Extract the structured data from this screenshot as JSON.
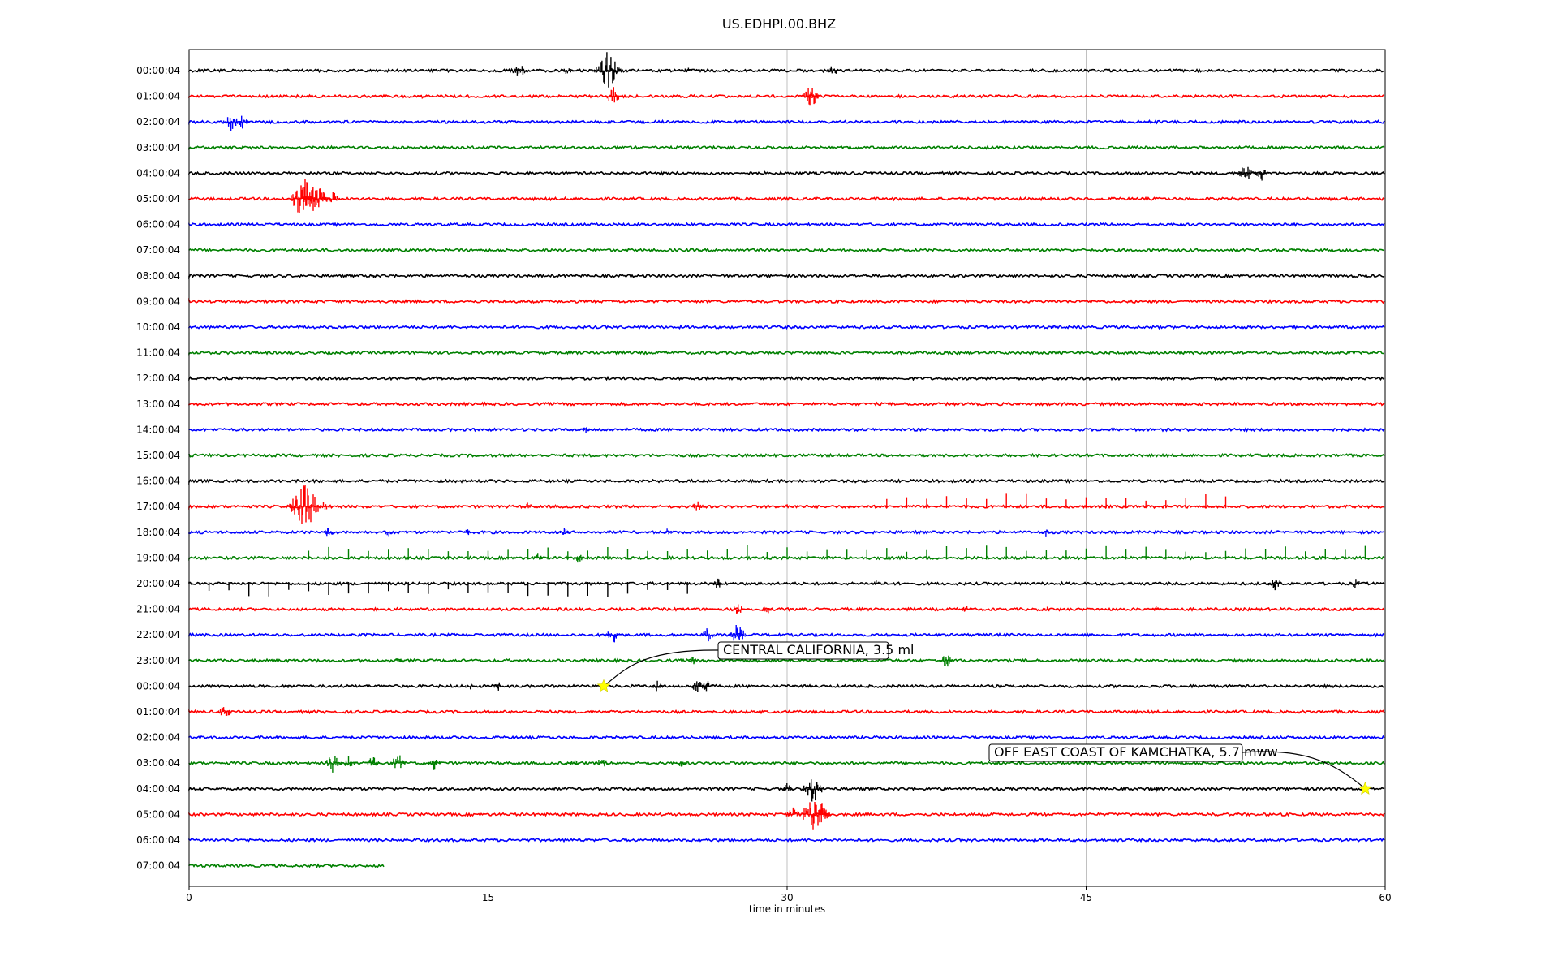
{
  "chart_data": {
    "type": "line",
    "title": "US.EDHPI.00.BHZ",
    "xlabel": "time in minutes",
    "xlim": [
      0,
      60
    ],
    "xticks": [
      "0",
      "15",
      "30",
      "45",
      "60"
    ],
    "xtick_values": [
      0,
      15,
      30,
      45,
      60
    ],
    "grid_x": true,
    "colors_cycle": [
      "#000000",
      "#ff0000",
      "#0000ff",
      "#008000"
    ],
    "rows": [
      {
        "label": "00:00:04",
        "events": [
          [
            16.5,
            1
          ],
          [
            19,
            0.5
          ],
          [
            21,
            2
          ],
          [
            21.5,
            0.5
          ],
          [
            25,
            0.4
          ],
          [
            32.3,
            0.6
          ]
        ],
        "end": 60
      },
      {
        "label": "01:00:04",
        "events": [
          [
            11.7,
            0.3
          ],
          [
            21.3,
            1
          ],
          [
            31.2,
            1.2
          ]
        ],
        "end": 60
      },
      {
        "label": "02:00:04",
        "events": [
          [
            2.1,
            1
          ],
          [
            2.7,
            0.8
          ]
        ],
        "end": 60
      },
      {
        "label": "03:00:04",
        "events": [],
        "end": 60
      },
      {
        "label": "04:00:04",
        "events": [
          [
            53,
            1
          ],
          [
            53.8,
            0.8
          ]
        ],
        "end": 60
      },
      {
        "label": "05:00:04",
        "events": [
          [
            5.8,
            2.5
          ],
          [
            6.3,
            2
          ],
          [
            7.2,
            0.8
          ]
        ],
        "end": 60
      },
      {
        "label": "06:00:04",
        "events": [],
        "end": 60
      },
      {
        "label": "07:00:04",
        "events": [],
        "end": 60
      },
      {
        "label": "08:00:04",
        "events": [
          [
            9.3,
            0.3
          ]
        ],
        "end": 60
      },
      {
        "label": "09:00:04",
        "events": [],
        "end": 60
      },
      {
        "label": "10:00:04",
        "events": [
          [
            43.3,
            0.3
          ]
        ],
        "end": 60
      },
      {
        "label": "11:00:04",
        "events": [],
        "end": 60
      },
      {
        "label": "12:00:04",
        "events": [],
        "end": 60
      },
      {
        "label": "13:00:04",
        "events": [],
        "end": 60
      },
      {
        "label": "14:00:04",
        "events": [
          [
            19.9,
            0.4
          ]
        ],
        "end": 60
      },
      {
        "label": "15:00:04",
        "events": [],
        "end": 60
      },
      {
        "label": "16:00:04",
        "events": [
          [
            33.5,
            0.4
          ]
        ],
        "end": 60
      },
      {
        "label": "17:00:04",
        "events": [
          [
            5.8,
            2.5
          ],
          [
            6.8,
            0.8
          ],
          [
            17,
            0.5
          ],
          [
            25.5,
            0.6
          ],
          [
            30,
            0.4
          ]
        ],
        "spikes_every": 1,
        "spikes_from": 35,
        "spikes_to": 52,
        "end": 60
      },
      {
        "label": "18:00:04",
        "events": [
          [
            7,
            0.6
          ],
          [
            10,
            0.5
          ],
          [
            14,
            0.5
          ],
          [
            18.8,
            0.5
          ],
          [
            24,
            0.5
          ],
          [
            43,
            0.5
          ]
        ],
        "end": 60
      },
      {
        "label": "19:00:04",
        "events": [
          [
            17.5,
            0.6
          ],
          [
            19.5,
            0.6
          ]
        ],
        "spikes_every": 1,
        "spikes_from": 6,
        "spikes_to": 59,
        "end": 60
      },
      {
        "label": "20:00:04",
        "events": [
          [
            26.5,
            0.6
          ],
          [
            34.5,
            0.4
          ],
          [
            54.5,
            0.8
          ],
          [
            58.5,
            0.6
          ]
        ],
        "spikes_every": 1,
        "spikes_from": 1,
        "spikes_to": 25,
        "down_spikes": true,
        "end": 60
      },
      {
        "label": "21:00:04",
        "events": [
          [
            27.5,
            0.7
          ],
          [
            29,
            0.5
          ],
          [
            39,
            0.5
          ],
          [
            43,
            0.4
          ],
          [
            48.5,
            0.4
          ]
        ],
        "end": 60
      },
      {
        "label": "22:00:04",
        "events": [
          [
            21.3,
            1
          ],
          [
            26,
            0.8
          ],
          [
            27.5,
            1.2
          ]
        ],
        "end": 60
      },
      {
        "label": "23:00:04",
        "events": [
          [
            10.5,
            0.4
          ],
          [
            25.3,
            0.5
          ],
          [
            38,
            0.8
          ]
        ],
        "end": 60
      },
      {
        "label": "00:00:04",
        "events": [
          [
            5,
            0.4
          ],
          [
            14,
            0.6
          ],
          [
            15.5,
            0.5
          ],
          [
            23.5,
            0.6
          ],
          [
            25.5,
            0.8
          ],
          [
            26,
            0.6
          ]
        ],
        "end": 60
      },
      {
        "label": "01:00:04",
        "events": [
          [
            1.8,
            0.8
          ]
        ],
        "end": 60
      },
      {
        "label": "02:00:04",
        "events": [],
        "end": 60
      },
      {
        "label": "03:00:04",
        "events": [
          [
            7.2,
            1
          ],
          [
            8,
            1
          ],
          [
            9.2,
            0.8
          ],
          [
            10.5,
            1
          ],
          [
            12.3,
            0.8
          ],
          [
            19.3,
            0.5
          ],
          [
            20.7,
            0.8
          ],
          [
            24.7,
            0.6
          ]
        ],
        "end": 60
      },
      {
        "label": "04:00:04",
        "events": [
          [
            30,
            0.6
          ],
          [
            31.3,
            1.6
          ],
          [
            48.5,
            0.4
          ],
          [
            53.9,
            0.3
          ]
        ],
        "end": 60
      },
      {
        "label": "05:00:04",
        "events": [
          [
            30.3,
            1
          ],
          [
            31.4,
            2.2
          ],
          [
            31.8,
            1
          ]
        ],
        "end": 60
      },
      {
        "label": "06:00:04",
        "events": [],
        "end": 60
      },
      {
        "label": "07:00:04",
        "events": [],
        "end": 9.8
      }
    ],
    "annotations": [
      {
        "text": "CENTRAL CALIFORNIA, 3.5 ml",
        "row": 24,
        "x": 20.8,
        "marker": "star",
        "marker_color": "#ffff00"
      },
      {
        "text": "OFF EAST COAST OF KAMCHATKA, 5.7 mww",
        "row": 28,
        "x": 59,
        "marker": "star",
        "marker_color": "#ffff00"
      }
    ]
  }
}
